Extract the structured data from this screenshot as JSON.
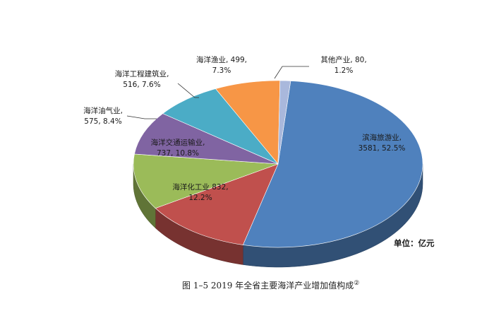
{
  "chart_data": {
    "type": "pie",
    "title": "",
    "categories": [
      "滨海旅游业",
      "海洋化工业",
      "海洋交通运输业",
      "海洋油气业",
      "海洋工程建筑业",
      "海洋渔业",
      "其他产业"
    ],
    "values": [
      3581,
      832,
      737,
      575,
      516,
      499,
      80
    ],
    "percents": [
      "52.5%",
      "12.2%",
      "10.8%",
      "8.4%",
      "7.6%",
      "7.3%",
      "1.2%"
    ],
    "colors": [
      "#4F81BD",
      "#C0504D",
      "#9BBB59",
      "#8064A2",
      "#4BACC6",
      "#F79646",
      "#A9B8DC"
    ],
    "unit_label": "单位：亿元",
    "caption_prefix": "图 1–5 2019 年全省主要海洋产业增加值构成",
    "caption_note": "②"
  }
}
